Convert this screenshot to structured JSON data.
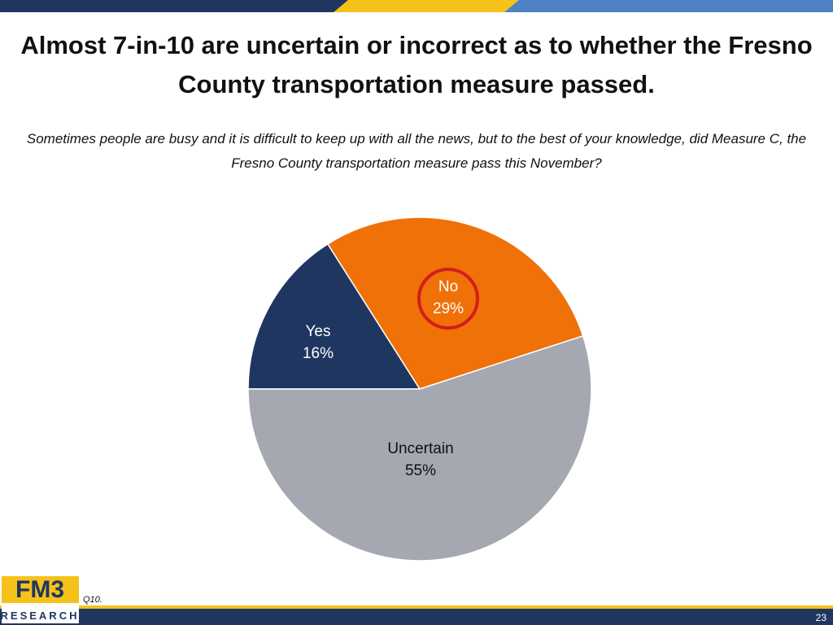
{
  "chart_data": {
    "type": "pie",
    "title": "Almost 7-in-10 are uncertain or incorrect as to whether the Fresno County transportation measure passed.",
    "subtitle": "Sometimes people are busy and it is difficult to keep up with all the news, but to the best of your knowledge, did Measure C, the Fresno County transportation measure pass this November?",
    "categories": [
      "Yes",
      "No",
      "Uncertain"
    ],
    "values": [
      16,
      29,
      55
    ],
    "value_labels": [
      "16%",
      "29%",
      "55%"
    ],
    "colors": [
      "#1f3760",
      "#f07108",
      "#a5a7b1"
    ]
  },
  "footer": {
    "note": "Q10.",
    "page": "23"
  },
  "logo": {
    "name": "FM3",
    "tagline": "RESEARCH"
  }
}
